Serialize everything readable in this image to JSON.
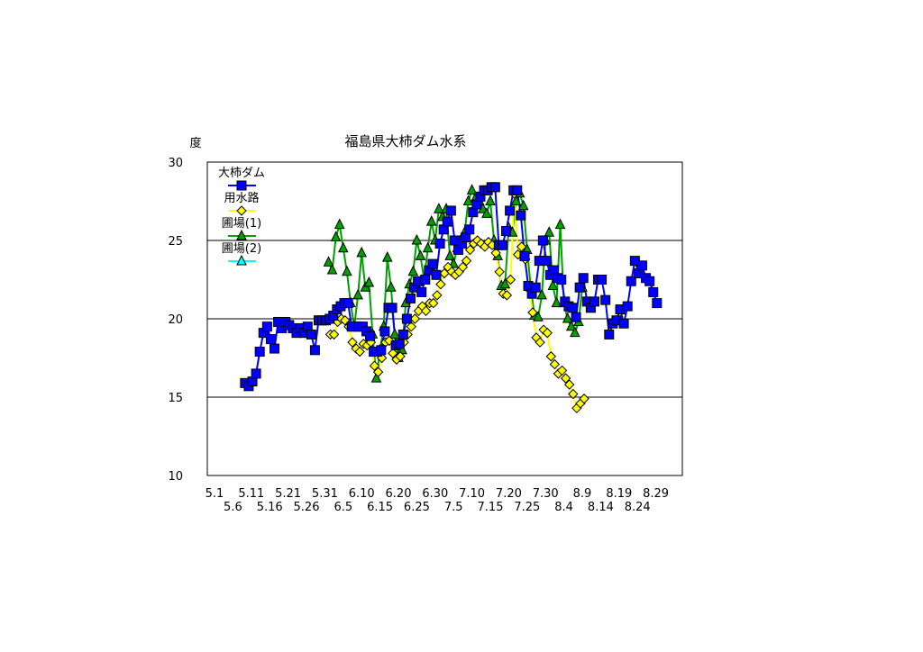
{
  "chart_data": {
    "type": "line",
    "title": "福島県大柿ダム水系",
    "ylabel": "度",
    "xlabel": "",
    "ylim": [
      10,
      30
    ],
    "yticks": [
      10,
      15,
      20,
      25,
      30
    ],
    "grid": true,
    "legend_placement": "top-left",
    "x_unit": "days since 5.1",
    "xticks_top": [
      {
        "day": 0,
        "label": "5.1"
      },
      {
        "day": 10,
        "label": "5.11"
      },
      {
        "day": 20,
        "label": "5.21"
      },
      {
        "day": 30,
        "label": "5.31"
      },
      {
        "day": 40,
        "label": "6.10"
      },
      {
        "day": 50,
        "label": "6.20"
      },
      {
        "day": 60,
        "label": "6.30"
      },
      {
        "day": 70,
        "label": "7.10"
      },
      {
        "day": 80,
        "label": "7.20"
      },
      {
        "day": 90,
        "label": "7.30"
      },
      {
        "day": 100,
        "label": "8.9"
      },
      {
        "day": 110,
        "label": "8.19"
      },
      {
        "day": 120,
        "label": "8.29"
      }
    ],
    "xticks_bottom": [
      {
        "day": 5,
        "label": "5.6"
      },
      {
        "day": 15,
        "label": "5.16"
      },
      {
        "day": 25,
        "label": "5.26"
      },
      {
        "day": 35,
        "label": "6.5"
      },
      {
        "day": 45,
        "label": "6.15"
      },
      {
        "day": 55,
        "label": "6.25"
      },
      {
        "day": 65,
        "label": "7.5"
      },
      {
        "day": 75,
        "label": "7.15"
      },
      {
        "day": 85,
        "label": "7.25"
      },
      {
        "day": 95,
        "label": "8.4"
      },
      {
        "day": 105,
        "label": "8.14"
      },
      {
        "day": 115,
        "label": "8.24"
      }
    ],
    "series": [
      {
        "name": "大柿ダム",
        "color": "#0000ff",
        "marker": "square",
        "start_day": 8.3,
        "values": [
          15.9,
          15.7,
          16.0,
          16.5,
          17.9,
          19.1,
          19.5,
          18.7,
          18.1,
          19.8,
          19.4,
          19.8,
          19.6,
          19.4,
          19.1,
          19.4,
          19.1,
          19.5,
          19.0,
          18.0,
          19.9,
          19.9,
          19.9,
          20.0,
          20.2,
          20.6,
          20.8,
          21.0,
          21.0,
          19.5,
          19.5,
          19.5,
          19.5,
          19.2,
          18.9,
          17.9,
          17.9,
          18.0,
          19.2,
          20.7,
          20.7,
          18.3,
          18.4,
          19.0,
          20.0,
          21.3,
          22.0,
          22.4,
          21.7,
          22.5,
          23.1,
          23.5,
          22.8,
          24.8,
          25.7,
          26.2,
          26.9,
          25.0,
          24.4,
          24.8,
          25.2,
          25.7,
          26.8,
          27.3,
          27.8,
          28.2,
          28.2,
          28.4,
          28.4,
          24.7,
          24.7,
          25.6,
          26.9,
          28.2,
          28.2,
          26.6,
          24.0,
          22.1,
          21.6,
          22.0,
          23.7,
          25.0,
          23.7,
          22.8,
          23.1,
          22.6,
          22.5,
          21.1,
          20.8,
          20.7,
          20.1,
          22.0,
          22.6,
          21.1,
          20.7,
          21.1,
          22.5,
          22.5,
          21.2,
          19.0,
          19.7,
          19.9,
          20.6,
          19.7,
          20.8,
          22.4,
          23.7,
          22.9,
          23.4,
          22.6,
          22.4,
          21.7,
          21.0
        ]
      },
      {
        "name": "用水路",
        "color": "#ffff00",
        "marker": "diamond",
        "start_day": 31.5,
        "values": [
          19.0,
          19.0,
          19.8,
          20.0,
          19.9,
          19.5,
          18.5,
          18.1,
          17.9,
          18.4,
          18.3,
          18.5,
          17.0,
          16.6,
          17.5,
          18.5,
          18.6,
          17.8,
          17.4,
          17.6,
          18.5,
          19.0,
          19.5,
          20.0,
          20.5,
          20.8,
          20.5,
          21.0,
          21.0,
          21.5,
          22.2,
          22.9,
          23.3,
          23.0,
          22.8,
          23.0,
          23.3,
          23.7,
          24.4,
          24.8,
          25.0,
          24.8,
          24.6,
          24.9,
          24.7,
          24.2,
          23.0,
          21.6,
          21.5,
          22.5,
          28.0,
          24.1,
          24.6,
          23.8,
          22.0,
          20.4,
          18.8,
          18.5,
          19.3,
          19.1,
          17.6,
          17.1,
          16.5,
          16.7,
          16.2,
          15.8,
          15.2,
          14.3,
          14.6,
          14.9
        ]
      },
      {
        "name": "圃場(1)",
        "color": "#00a000",
        "marker": "triangle",
        "start_day": 31.0,
        "values": [
          23.6,
          23.1,
          25.2,
          26.0,
          24.5,
          23.0,
          21.0,
          19.5,
          21.5,
          24.2,
          22.0,
          22.3,
          19.0,
          16.2,
          18.0,
          19.5,
          23.9,
          22.0,
          19.0,
          17.5,
          18.0,
          21.0,
          22.2,
          23.0,
          25.0,
          24.0,
          22.5,
          24.5,
          26.2,
          25.0,
          27.0,
          26.5,
          27.0,
          24.0,
          23.5,
          24.5,
          25.0,
          25.5,
          27.5,
          28.2,
          27.7,
          27.5,
          27.0,
          26.7,
          27.5,
          25.0,
          24.0,
          22.1,
          22.2,
          25.8,
          25.5,
          27.5,
          28.0,
          27.2,
          24.4,
          22.0,
          20.2,
          20.1,
          21.5,
          25.0,
          25.5,
          22.1,
          21.0,
          26.0,
          21.0,
          20.0,
          19.5,
          19.1,
          19.8,
          22.0
        ]
      },
      {
        "name": "圃場(2)",
        "color": "#00ffff",
        "marker": "triangle",
        "start_day": 0,
        "values": []
      }
    ]
  }
}
